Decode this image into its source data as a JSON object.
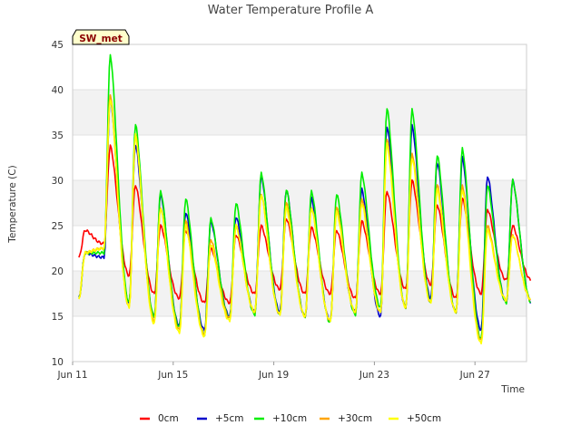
{
  "chart_data": {
    "type": "line",
    "title": "Water Temperature Profile A",
    "xlabel": "Time",
    "ylabel": "Temperature (C)",
    "badge": "SW_met",
    "x_start_label": "Jun 11",
    "x_ticks": [
      "Jun 11",
      "Jun 15",
      "Jun 19",
      "Jun 23",
      "Jun 27"
    ],
    "y_ticks": [
      10,
      15,
      20,
      25,
      30,
      35,
      40,
      45
    ],
    "ylim": [
      10,
      45
    ],
    "xlim": [
      "Jun 11",
      "Jun 29"
    ],
    "grid": "horizontal bands",
    "legend_position": "bottom",
    "colors": {
      "0cm": "#ff0000",
      "+5cm": "#0000cc",
      "+10cm": "#00ee00",
      "+30cm": "#ffa500",
      "+50cm": "#ffff00",
      "band": "#f2f2f2",
      "badge_fill": "#ffffcc"
    },
    "days": [
      "Jun 11",
      "Jun 12",
      "Jun 13",
      "Jun 14",
      "Jun 15",
      "Jun 16",
      "Jun 17",
      "Jun 18",
      "Jun 19",
      "Jun 20",
      "Jun 21",
      "Jun 22",
      "Jun 23",
      "Jun 24",
      "Jun 25",
      "Jun 26",
      "Jun 27",
      "Jun 28"
    ],
    "series": [
      {
        "name": "0cm",
        "color": "#ff0000",
        "daily_min": [
          21.5,
          23.0,
          19.5,
          17.5,
          17.0,
          16.5,
          16.5,
          17.5,
          18.0,
          17.5,
          17.5,
          17.0,
          17.5,
          18.0,
          18.5,
          17.0,
          17.5,
          19.0
        ],
        "daily_max": [
          24.5,
          33.8,
          29.5,
          25.0,
          24.5,
          22.5,
          24.0,
          25.0,
          25.8,
          24.8,
          24.5,
          25.5,
          28.8,
          30.0,
          27.3,
          28.0,
          26.8,
          25.0
        ]
      },
      {
        "name": "+5cm",
        "color": "#0000cc",
        "daily_min": [
          17.0,
          21.5,
          16.5,
          15.0,
          14.0,
          13.5,
          15.0,
          15.5,
          15.5,
          15.0,
          14.5,
          15.5,
          15.0,
          16.0,
          17.0,
          15.5,
          13.5,
          16.5
        ],
        "daily_max": [
          22.0,
          39.0,
          34.0,
          28.5,
          26.5,
          25.5,
          26.0,
          30.5,
          29.0,
          28.0,
          27.0,
          29.0,
          36.0,
          36.0,
          32.0,
          32.5,
          30.5,
          30.0
        ]
      },
      {
        "name": "+10cm",
        "color": "#00ee00",
        "daily_min": [
          17.0,
          22.0,
          16.5,
          15.0,
          13.8,
          13.0,
          14.8,
          15.2,
          15.2,
          15.0,
          14.3,
          15.2,
          16.0,
          16.0,
          16.5,
          15.5,
          12.5,
          16.5
        ],
        "daily_max": [
          22.0,
          43.8,
          36.2,
          28.8,
          28.0,
          25.8,
          27.5,
          30.8,
          29.0,
          28.8,
          28.5,
          30.8,
          38.0,
          37.8,
          32.8,
          33.5,
          29.5,
          30.0
        ]
      },
      {
        "name": "+30cm",
        "color": "#ffa500",
        "daily_min": [
          17.0,
          22.5,
          16.0,
          14.5,
          13.5,
          13.0,
          14.8,
          15.5,
          15.2,
          15.0,
          14.5,
          15.5,
          15.5,
          16.0,
          16.5,
          15.5,
          12.3,
          16.8
        ],
        "daily_max": [
          22.0,
          39.5,
          35.0,
          27.0,
          25.5,
          23.5,
          25.0,
          28.5,
          27.5,
          27.0,
          27.0,
          28.0,
          34.5,
          33.0,
          29.5,
          29.5,
          25.0,
          24.0
        ]
      },
      {
        "name": "+50cm",
        "color": "#ffff00",
        "daily_min": [
          17.0,
          22.5,
          16.0,
          14.2,
          13.2,
          12.8,
          14.5,
          15.5,
          15.2,
          15.0,
          14.5,
          15.5,
          15.5,
          16.0,
          16.5,
          15.5,
          12.0,
          16.8
        ],
        "daily_max": [
          22.0,
          39.0,
          35.0,
          27.0,
          25.0,
          23.0,
          25.0,
          28.5,
          27.0,
          27.0,
          26.5,
          27.5,
          34.0,
          32.5,
          29.0,
          29.0,
          24.5,
          24.0
        ]
      }
    ]
  }
}
